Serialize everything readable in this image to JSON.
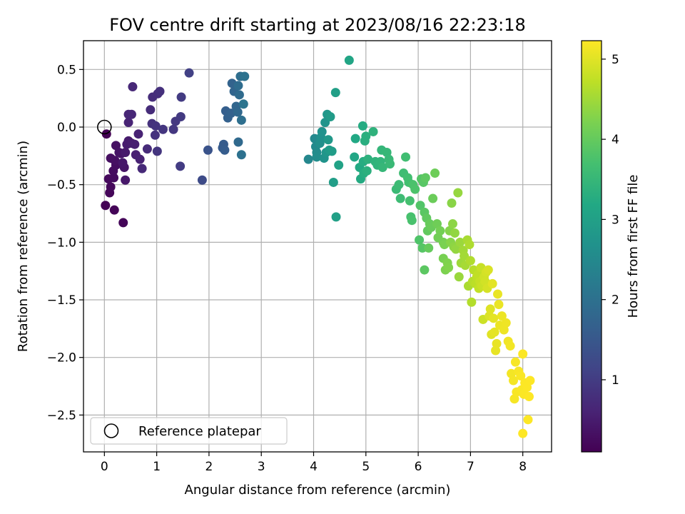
{
  "chart_data": {
    "type": "scatter",
    "title": "FOV centre drift starting at 2023/08/16 22:23:18",
    "xlabel": "Angular distance from reference (arcmin)",
    "ylabel": "Rotation from reference (arcmin)",
    "xlim": [
      -0.4,
      8.55
    ],
    "ylim": [
      -2.82,
      0.75
    ],
    "xticks": [
      0,
      1,
      2,
      3,
      4,
      5,
      6,
      7,
      8
    ],
    "xtick_labels": [
      "0",
      "1",
      "2",
      "3",
      "4",
      "5",
      "6",
      "7",
      "8"
    ],
    "yticks": [
      0.5,
      0.0,
      -0.5,
      -1.0,
      -1.5,
      -2.0,
      -2.5
    ],
    "ytick_labels": [
      "0.5",
      "0.0",
      "−0.5",
      "−1.0",
      "−1.5",
      "−2.0",
      "−2.5"
    ],
    "grid": true,
    "colormap": "viridis",
    "colorbar": {
      "label": "Hours from first FF file",
      "range": [
        0.1,
        5.23
      ],
      "ticks": [
        1,
        2,
        3,
        4,
        5
      ],
      "tick_labels": [
        "1",
        "2",
        "3",
        "4",
        "5"
      ]
    },
    "reference_point": {
      "x": 0.0,
      "y": 0.0,
      "marker": "open-circle"
    },
    "legend": {
      "position": "lower-left",
      "entries": [
        "Reference platepar"
      ]
    },
    "points": [
      {
        "x": 0.04,
        "y": -0.06,
        "t": 0.1
      },
      {
        "x": 0.02,
        "y": -0.68,
        "t": 0.12
      },
      {
        "x": 0.19,
        "y": -0.72,
        "t": 0.14
      },
      {
        "x": 0.36,
        "y": -0.83,
        "t": 0.16
      },
      {
        "x": 0.1,
        "y": -0.57,
        "t": 0.18
      },
      {
        "x": 0.12,
        "y": -0.52,
        "t": 0.2
      },
      {
        "x": 0.08,
        "y": -0.45,
        "t": 0.22
      },
      {
        "x": 0.18,
        "y": -0.44,
        "t": 0.24
      },
      {
        "x": 0.17,
        "y": -0.38,
        "t": 0.26
      },
      {
        "x": 0.22,
        "y": -0.33,
        "t": 0.28
      },
      {
        "x": 0.12,
        "y": -0.27,
        "t": 0.3
      },
      {
        "x": 0.2,
        "y": -0.29,
        "t": 0.32
      },
      {
        "x": 0.22,
        "y": -0.16,
        "t": 0.34
      },
      {
        "x": 0.28,
        "y": -0.22,
        "t": 0.36
      },
      {
        "x": 0.32,
        "y": -0.23,
        "t": 0.38
      },
      {
        "x": 0.38,
        "y": -0.35,
        "t": 0.4
      },
      {
        "x": 0.35,
        "y": -0.31,
        "t": 0.42
      },
      {
        "x": 0.4,
        "y": -0.46,
        "t": 0.44
      },
      {
        "x": 0.4,
        "y": -0.22,
        "t": 0.46
      },
      {
        "x": 0.46,
        "y": -0.12,
        "t": 0.48
      },
      {
        "x": 0.43,
        "y": -0.15,
        "t": 0.5
      },
      {
        "x": 0.52,
        "y": -0.14,
        "t": 0.52
      },
      {
        "x": 0.58,
        "y": -0.15,
        "t": 0.54
      },
      {
        "x": 0.6,
        "y": -0.24,
        "t": 0.56
      },
      {
        "x": 0.68,
        "y": -0.28,
        "t": 0.58
      },
      {
        "x": 0.65,
        "y": -0.06,
        "t": 0.6
      },
      {
        "x": 0.46,
        "y": 0.04,
        "t": 0.62
      },
      {
        "x": 0.46,
        "y": 0.11,
        "t": 0.64
      },
      {
        "x": 0.52,
        "y": 0.11,
        "t": 0.66
      },
      {
        "x": 0.54,
        "y": 0.35,
        "t": 0.68
      },
      {
        "x": 0.72,
        "y": -0.36,
        "t": 0.7
      },
      {
        "x": 0.82,
        "y": -0.19,
        "t": 0.72
      },
      {
        "x": 0.88,
        "y": 0.15,
        "t": 0.74
      },
      {
        "x": 0.92,
        "y": 0.26,
        "t": 0.76
      },
      {
        "x": 1.02,
        "y": 0.29,
        "t": 0.78
      },
      {
        "x": 1.06,
        "y": 0.31,
        "t": 0.8
      },
      {
        "x": 0.91,
        "y": 0.03,
        "t": 0.82
      },
      {
        "x": 0.97,
        "y": -0.07,
        "t": 0.84
      },
      {
        "x": 0.98,
        "y": 0.01,
        "t": 0.86
      },
      {
        "x": 1.01,
        "y": -0.21,
        "t": 0.88
      },
      {
        "x": 1.12,
        "y": -0.02,
        "t": 0.9
      },
      {
        "x": 1.32,
        "y": -0.02,
        "t": 0.92
      },
      {
        "x": 1.36,
        "y": 0.05,
        "t": 0.94
      },
      {
        "x": 1.46,
        "y": 0.09,
        "t": 0.96
      },
      {
        "x": 1.47,
        "y": 0.26,
        "t": 0.98
      },
      {
        "x": 1.45,
        "y": -0.34,
        "t": 1.0
      },
      {
        "x": 1.62,
        "y": 0.47,
        "t": 1.08
      },
      {
        "x": 1.87,
        "y": -0.46,
        "t": 1.25
      },
      {
        "x": 1.98,
        "y": -0.2,
        "t": 1.42
      },
      {
        "x": 2.26,
        "y": -0.18,
        "t": 1.55
      },
      {
        "x": 2.28,
        "y": -0.15,
        "t": 1.58
      },
      {
        "x": 2.3,
        "y": -0.2,
        "t": 1.61
      },
      {
        "x": 2.32,
        "y": 0.14,
        "t": 1.64
      },
      {
        "x": 2.36,
        "y": 0.08,
        "t": 1.67
      },
      {
        "x": 2.42,
        "y": 0.12,
        "t": 1.7
      },
      {
        "x": 2.44,
        "y": 0.38,
        "t": 1.73
      },
      {
        "x": 2.48,
        "y": 0.31,
        "t": 1.76
      },
      {
        "x": 2.52,
        "y": 0.18,
        "t": 1.79
      },
      {
        "x": 2.55,
        "y": 0.13,
        "t": 1.82
      },
      {
        "x": 2.56,
        "y": -0.13,
        "t": 1.85
      },
      {
        "x": 2.58,
        "y": 0.28,
        "t": 1.88
      },
      {
        "x": 2.56,
        "y": 0.36,
        "t": 1.91
      },
      {
        "x": 2.6,
        "y": 0.44,
        "t": 1.94
      },
      {
        "x": 2.62,
        "y": 0.06,
        "t": 1.97
      },
      {
        "x": 2.62,
        "y": -0.24,
        "t": 2.0
      },
      {
        "x": 2.68,
        "y": 0.44,
        "t": 2.03
      },
      {
        "x": 2.66,
        "y": 0.2,
        "t": 2.06
      },
      {
        "x": 3.9,
        "y": -0.28,
        "t": 2.45
      },
      {
        "x": 4.02,
        "y": -0.1,
        "t": 2.5
      },
      {
        "x": 4.04,
        "y": -0.17,
        "t": 2.53
      },
      {
        "x": 4.06,
        "y": -0.22,
        "t": 2.56
      },
      {
        "x": 4.06,
        "y": -0.26,
        "t": 2.59
      },
      {
        "x": 4.12,
        "y": -0.14,
        "t": 2.62
      },
      {
        "x": 4.14,
        "y": -0.09,
        "t": 2.65
      },
      {
        "x": 4.16,
        "y": -0.04,
        "t": 2.68
      },
      {
        "x": 4.2,
        "y": -0.27,
        "t": 2.71
      },
      {
        "x": 4.22,
        "y": 0.04,
        "t": 2.74
      },
      {
        "x": 4.24,
        "y": -0.22,
        "t": 2.77
      },
      {
        "x": 4.26,
        "y": 0.11,
        "t": 2.8
      },
      {
        "x": 4.28,
        "y": -0.11,
        "t": 2.83
      },
      {
        "x": 4.3,
        "y": -0.2,
        "t": 2.86
      },
      {
        "x": 4.32,
        "y": 0.09,
        "t": 2.89
      },
      {
        "x": 4.35,
        "y": -0.21,
        "t": 2.92
      },
      {
        "x": 4.38,
        "y": -0.48,
        "t": 2.95
      },
      {
        "x": 4.42,
        "y": 0.3,
        "t": 2.98
      },
      {
        "x": 4.43,
        "y": -0.78,
        "t": 3.01
      },
      {
        "x": 4.48,
        "y": -0.33,
        "t": 3.04
      },
      {
        "x": 4.68,
        "y": 0.58,
        "t": 3.1
      },
      {
        "x": 4.78,
        "y": -0.26,
        "t": 3.14
      },
      {
        "x": 4.8,
        "y": -0.1,
        "t": 3.17
      },
      {
        "x": 4.88,
        "y": -0.35,
        "t": 3.2
      },
      {
        "x": 4.9,
        "y": -0.45,
        "t": 3.22
      },
      {
        "x": 4.94,
        "y": 0.01,
        "t": 3.24
      },
      {
        "x": 4.95,
        "y": -0.3,
        "t": 3.26
      },
      {
        "x": 4.96,
        "y": -0.4,
        "t": 3.28
      },
      {
        "x": 4.98,
        "y": -0.12,
        "t": 3.3
      },
      {
        "x": 5.0,
        "y": -0.08,
        "t": 3.32
      },
      {
        "x": 5.02,
        "y": -0.38,
        "t": 3.34
      },
      {
        "x": 5.04,
        "y": -0.28,
        "t": 3.36
      },
      {
        "x": 5.14,
        "y": -0.04,
        "t": 3.38
      },
      {
        "x": 5.18,
        "y": -0.3,
        "t": 3.4
      },
      {
        "x": 5.22,
        "y": -0.33,
        "t": 3.42
      },
      {
        "x": 5.28,
        "y": -0.3,
        "t": 3.44
      },
      {
        "x": 5.3,
        "y": -0.2,
        "t": 3.46
      },
      {
        "x": 5.32,
        "y": -0.35,
        "t": 3.48
      },
      {
        "x": 5.4,
        "y": -0.22,
        "t": 3.5
      },
      {
        "x": 5.44,
        "y": -0.28,
        "t": 3.52
      },
      {
        "x": 5.46,
        "y": -0.32,
        "t": 3.54
      },
      {
        "x": 5.58,
        "y": -0.54,
        "t": 3.56
      },
      {
        "x": 5.63,
        "y": -0.5,
        "t": 3.58
      },
      {
        "x": 5.66,
        "y": -0.62,
        "t": 3.6
      },
      {
        "x": 5.72,
        "y": -0.4,
        "t": 3.62
      },
      {
        "x": 5.76,
        "y": -0.26,
        "t": 3.64
      },
      {
        "x": 5.8,
        "y": -0.44,
        "t": 3.66
      },
      {
        "x": 5.82,
        "y": -0.48,
        "t": 3.68
      },
      {
        "x": 5.84,
        "y": -0.64,
        "t": 3.7
      },
      {
        "x": 5.86,
        "y": -0.78,
        "t": 3.72
      },
      {
        "x": 5.88,
        "y": -0.81,
        "t": 3.74
      },
      {
        "x": 5.9,
        "y": -0.5,
        "t": 3.76
      },
      {
        "x": 5.94,
        "y": -0.54,
        "t": 3.78
      },
      {
        "x": 6.02,
        "y": -0.98,
        "t": 3.8
      },
      {
        "x": 6.04,
        "y": -0.68,
        "t": 3.82
      },
      {
        "x": 6.06,
        "y": -0.45,
        "t": 3.84
      },
      {
        "x": 6.08,
        "y": -1.05,
        "t": 3.86
      },
      {
        "x": 6.1,
        "y": -0.48,
        "t": 3.88
      },
      {
        "x": 6.12,
        "y": -0.74,
        "t": 3.9
      },
      {
        "x": 6.12,
        "y": -1.24,
        "t": 3.92
      },
      {
        "x": 6.14,
        "y": -0.44,
        "t": 3.94
      },
      {
        "x": 6.16,
        "y": -0.79,
        "t": 3.96
      },
      {
        "x": 6.18,
        "y": -0.9,
        "t": 3.98
      },
      {
        "x": 6.2,
        "y": -1.05,
        "t": 4.0
      },
      {
        "x": 6.22,
        "y": -0.84,
        "t": 4.02
      },
      {
        "x": 6.25,
        "y": -0.87,
        "t": 4.04
      },
      {
        "x": 6.28,
        "y": -0.62,
        "t": 4.06
      },
      {
        "x": 6.32,
        "y": -0.4,
        "t": 4.08
      },
      {
        "x": 6.36,
        "y": -0.84,
        "t": 4.1
      },
      {
        "x": 6.38,
        "y": -0.96,
        "t": 4.12
      },
      {
        "x": 6.42,
        "y": -0.9,
        "t": 4.14
      },
      {
        "x": 6.48,
        "y": -1.0,
        "t": 4.16
      },
      {
        "x": 6.48,
        "y": -1.14,
        "t": 4.18
      },
      {
        "x": 6.5,
        "y": -1.02,
        "t": 4.2
      },
      {
        "x": 6.52,
        "y": -1.24,
        "t": 4.22
      },
      {
        "x": 6.56,
        "y": -1.18,
        "t": 4.24
      },
      {
        "x": 6.58,
        "y": -1.22,
        "t": 4.26
      },
      {
        "x": 6.6,
        "y": -0.9,
        "t": 4.28
      },
      {
        "x": 6.62,
        "y": -1.0,
        "t": 4.3
      },
      {
        "x": 6.64,
        "y": -0.66,
        "t": 4.32
      },
      {
        "x": 6.66,
        "y": -0.84,
        "t": 4.34
      },
      {
        "x": 6.68,
        "y": -1.04,
        "t": 4.36
      },
      {
        "x": 6.7,
        "y": -0.92,
        "t": 4.38
      },
      {
        "x": 6.72,
        "y": -1.06,
        "t": 4.4
      },
      {
        "x": 6.76,
        "y": -0.57,
        "t": 4.42
      },
      {
        "x": 6.78,
        "y": -1.3,
        "t": 4.44
      },
      {
        "x": 6.8,
        "y": -1.0,
        "t": 4.46
      },
      {
        "x": 6.82,
        "y": -1.18,
        "t": 4.48
      },
      {
        "x": 6.86,
        "y": -1.07,
        "t": 4.5
      },
      {
        "x": 6.88,
        "y": -1.12,
        "t": 4.52
      },
      {
        "x": 6.9,
        "y": -1.2,
        "t": 4.54
      },
      {
        "x": 6.94,
        "y": -0.98,
        "t": 4.56
      },
      {
        "x": 6.96,
        "y": -1.38,
        "t": 4.58
      },
      {
        "x": 6.98,
        "y": -1.02,
        "t": 4.6
      },
      {
        "x": 7.0,
        "y": -1.16,
        "t": 4.62
      },
      {
        "x": 7.02,
        "y": -1.52,
        "t": 4.64
      },
      {
        "x": 7.04,
        "y": -1.34,
        "t": 4.66
      },
      {
        "x": 7.06,
        "y": -1.24,
        "t": 4.68
      },
      {
        "x": 7.1,
        "y": -1.36,
        "t": 4.7
      },
      {
        "x": 7.12,
        "y": -1.3,
        "t": 4.72
      },
      {
        "x": 7.14,
        "y": -1.28,
        "t": 4.74
      },
      {
        "x": 7.16,
        "y": -1.4,
        "t": 4.76
      },
      {
        "x": 7.18,
        "y": -1.34,
        "t": 4.78
      },
      {
        "x": 7.2,
        "y": -1.22,
        "t": 4.8
      },
      {
        "x": 7.22,
        "y": -1.38,
        "t": 4.82
      },
      {
        "x": 7.24,
        "y": -1.67,
        "t": 4.84
      },
      {
        "x": 7.26,
        "y": -1.3,
        "t": 4.86
      },
      {
        "x": 7.28,
        "y": -1.34,
        "t": 4.88
      },
      {
        "x": 7.3,
        "y": -1.26,
        "t": 4.9
      },
      {
        "x": 7.32,
        "y": -1.4,
        "t": 4.92
      },
      {
        "x": 7.34,
        "y": -1.24,
        "t": 4.94
      },
      {
        "x": 7.36,
        "y": -1.64,
        "t": 4.96
      },
      {
        "x": 7.38,
        "y": -1.58,
        "t": 4.98
      },
      {
        "x": 7.4,
        "y": -1.8,
        "t": 5.0
      },
      {
        "x": 7.42,
        "y": -1.36,
        "t": 5.02
      },
      {
        "x": 7.44,
        "y": -1.66,
        "t": 5.03
      },
      {
        "x": 7.46,
        "y": -1.78,
        "t": 5.04
      },
      {
        "x": 7.48,
        "y": -1.94,
        "t": 5.05
      },
      {
        "x": 7.5,
        "y": -1.88,
        "t": 5.06
      },
      {
        "x": 7.52,
        "y": -1.45,
        "t": 5.07
      },
      {
        "x": 7.54,
        "y": -1.54,
        "t": 5.08
      },
      {
        "x": 7.56,
        "y": -1.72,
        "t": 5.09
      },
      {
        "x": 7.6,
        "y": -1.64,
        "t": 5.1
      },
      {
        "x": 7.64,
        "y": -1.76,
        "t": 5.11
      },
      {
        "x": 7.68,
        "y": -1.7,
        "t": 5.12
      },
      {
        "x": 7.72,
        "y": -1.86,
        "t": 5.13
      },
      {
        "x": 7.76,
        "y": -1.9,
        "t": 5.14
      },
      {
        "x": 7.78,
        "y": -2.14,
        "t": 5.15
      },
      {
        "x": 7.82,
        "y": -2.2,
        "t": 5.16
      },
      {
        "x": 7.84,
        "y": -2.36,
        "t": 5.17
      },
      {
        "x": 7.86,
        "y": -2.04,
        "t": 5.18
      },
      {
        "x": 7.88,
        "y": -2.3,
        "t": 5.19
      },
      {
        "x": 7.92,
        "y": -2.12,
        "t": 5.19
      },
      {
        "x": 7.96,
        "y": -2.16,
        "t": 5.2
      },
      {
        "x": 7.98,
        "y": -2.28,
        "t": 5.2
      },
      {
        "x": 8.0,
        "y": -1.97,
        "t": 5.21
      },
      {
        "x": 8.02,
        "y": -2.32,
        "t": 5.21
      },
      {
        "x": 8.04,
        "y": -2.22,
        "t": 5.22
      },
      {
        "x": 8.08,
        "y": -2.26,
        "t": 5.22
      },
      {
        "x": 8.1,
        "y": -2.54,
        "t": 5.22
      },
      {
        "x": 8.12,
        "y": -2.34,
        "t": 5.23
      },
      {
        "x": 8.14,
        "y": -2.2,
        "t": 5.23
      },
      {
        "x": 8.0,
        "y": -2.66,
        "t": 5.23
      }
    ]
  }
}
